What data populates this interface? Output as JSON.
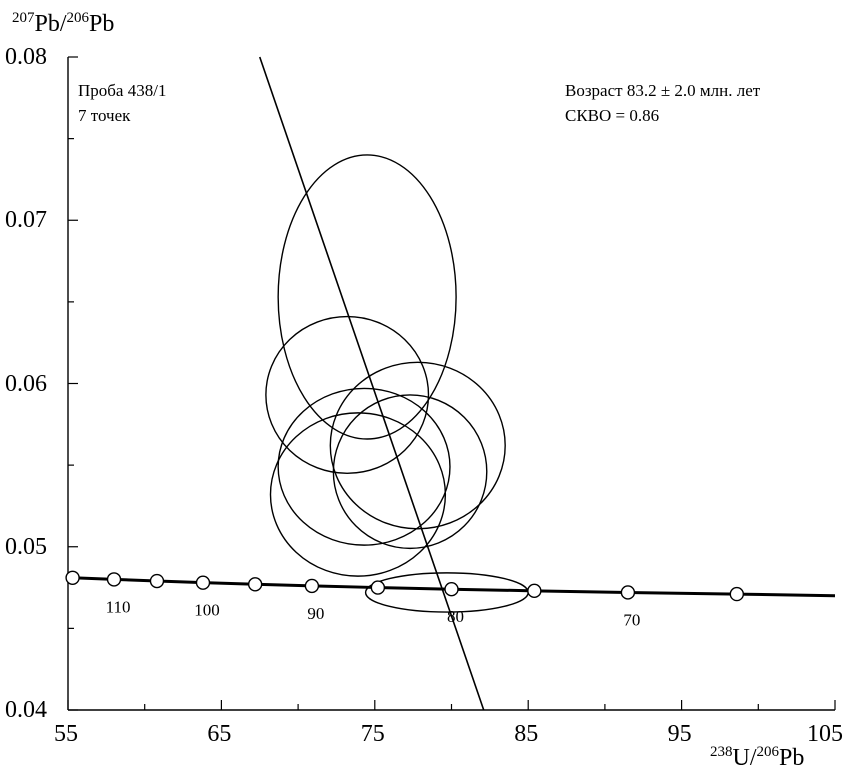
{
  "chart_data": {
    "type": "scatter",
    "xlabel": {
      "sup1": "238",
      "main1": "U/",
      "sup2": "206",
      "main2": "Pb"
    },
    "ylabel": {
      "sup1": "207",
      "main1": "Pb/",
      "sup2": "206",
      "main2": "Pb"
    },
    "xlim": [
      55,
      105
    ],
    "ylim": [
      0.04,
      0.08
    ],
    "x_ticks": [
      "55",
      "65",
      "75",
      "85",
      "95",
      "105"
    ],
    "y_ticks": [
      "0.04",
      "0.05",
      "0.06",
      "0.07",
      "0.08"
    ],
    "annotations": {
      "sample": "Проба 438/1",
      "points": "7 точек",
      "age": "Возраст 83.2 ± 2.0 млн. лет",
      "mswd": "СКВО = 0.86"
    },
    "concordia": {
      "points": [
        {
          "age": "",
          "x": 55.3,
          "y": 0.0481
        },
        {
          "age": "110",
          "x": 58.0,
          "y": 0.048
        },
        {
          "age": "",
          "x": 60.8,
          "y": 0.0479
        },
        {
          "age": "100",
          "x": 63.8,
          "y": 0.0478
        },
        {
          "age": "",
          "x": 67.2,
          "y": 0.0477
        },
        {
          "age": "90",
          "x": 70.9,
          "y": 0.0476
        },
        {
          "age": "",
          "x": 75.2,
          "y": 0.0475
        },
        {
          "age": "80",
          "x": 80.0,
          "y": 0.0474
        },
        {
          "age": "",
          "x": 85.4,
          "y": 0.0473
        },
        {
          "age": "70",
          "x": 91.5,
          "y": 0.0472
        },
        {
          "age": "",
          "x": 98.6,
          "y": 0.0471
        }
      ],
      "end": {
        "x": 105,
        "y": 0.047
      }
    },
    "regression_line": [
      {
        "x": 67.5,
        "y": 0.08
      },
      {
        "x": 82.1,
        "y": 0.04
      }
    ],
    "ellipses": [
      {
        "cx": 74.5,
        "cy": 0.0653,
        "rx": 5.8,
        "ry": 0.0087
      },
      {
        "cx": 73.2,
        "cy": 0.0593,
        "rx": 5.3,
        "ry": 0.0048
      },
      {
        "cx": 77.8,
        "cy": 0.0562,
        "rx": 5.7,
        "ry": 0.0051
      },
      {
        "cx": 74.3,
        "cy": 0.0549,
        "rx": 5.6,
        "ry": 0.0048
      },
      {
        "cx": 77.3,
        "cy": 0.0546,
        "rx": 5.0,
        "ry": 0.0047
      },
      {
        "cx": 73.9,
        "cy": 0.0532,
        "rx": 5.7,
        "ry": 0.005
      },
      {
        "cx": 79.7,
        "cy": 0.0472,
        "rx": 5.3,
        "ry": 0.0012
      }
    ],
    "grid": false
  }
}
